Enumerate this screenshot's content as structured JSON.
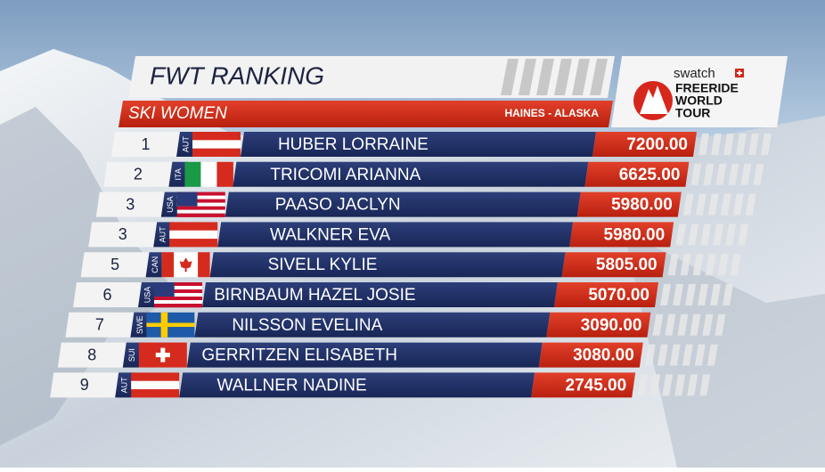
{
  "header": {
    "title": "FWT RANKING",
    "subtitle": "SKI WOMEN",
    "location": "HAINES - ALASKA"
  },
  "logo": {
    "brand": "swatch",
    "lines": [
      "FREERIDE",
      "WORLD",
      "TOUR"
    ]
  },
  "table": {
    "rows": [
      [
        "1",
        "AUT",
        "HUBER LORRAINE",
        "7200.00"
      ],
      [
        "2",
        "ITA",
        "TRICOMI ARIANNA",
        "6625.00"
      ],
      [
        "3",
        "USA",
        "PAASO JACLYN",
        "5980.00"
      ],
      [
        "3",
        "AUT",
        "WALKNER EVA",
        "5980.00"
      ],
      [
        "5",
        "CAN",
        "SIVELL KYLIE",
        "5805.00"
      ],
      [
        "6",
        "USA",
        "BIRNBAUM HAZEL JOSIE",
        "5070.00"
      ],
      [
        "7",
        "SWE",
        "NILSSON EVELINA",
        "3090.00"
      ],
      [
        "8",
        "SUI",
        "GERRITZEN ELISABETH",
        "3080.00"
      ],
      [
        "9",
        "AUT",
        "WALLNER NADINE",
        "2745.00"
      ]
    ]
  }
}
